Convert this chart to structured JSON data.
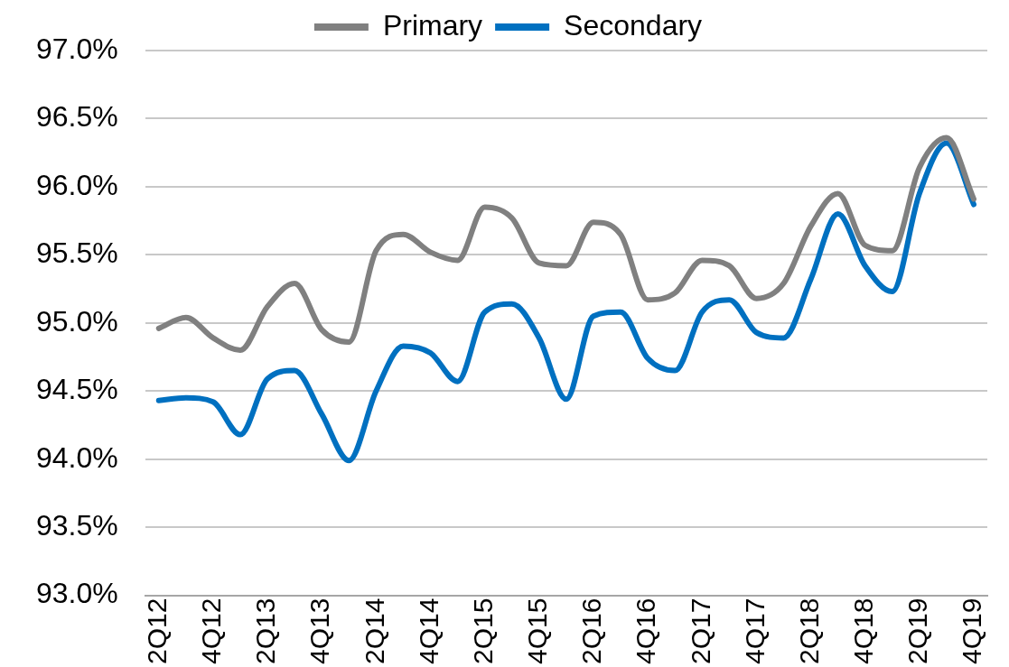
{
  "chart_data": {
    "type": "line",
    "categories": [
      "2Q12",
      null,
      "4Q12",
      null,
      "2Q13",
      null,
      "4Q13",
      null,
      "2Q14",
      null,
      "4Q14",
      null,
      "2Q15",
      null,
      "4Q15",
      null,
      "2Q16",
      null,
      "4Q16",
      null,
      "2Q17",
      null,
      "4Q17",
      null,
      "2Q18",
      null,
      "4Q18",
      null,
      "2Q19",
      null,
      "4Q19"
    ],
    "series": [
      {
        "name": "Primary",
        "color": "#808080",
        "values": [
          94.96,
          95.04,
          94.89,
          94.8,
          95.12,
          95.29,
          94.95,
          94.86,
          95.53,
          95.65,
          95.52,
          95.46,
          95.85,
          95.77,
          95.44,
          95.42,
          95.74,
          95.65,
          95.17,
          95.22,
          95.46,
          95.42,
          95.18,
          95.29,
          95.71,
          95.95,
          95.57,
          95.53,
          96.14,
          96.36,
          95.91
        ]
      },
      {
        "name": "Secondary",
        "color": "#0070c0",
        "values": [
          94.43,
          94.45,
          94.42,
          94.18,
          94.59,
          94.65,
          94.33,
          93.99,
          94.5,
          94.83,
          94.78,
          94.57,
          95.08,
          95.14,
          94.89,
          94.44,
          95.05,
          95.08,
          94.74,
          94.65,
          95.08,
          95.17,
          94.93,
          94.89,
          95.32,
          95.8,
          95.42,
          95.23,
          95.95,
          96.32,
          95.87
        ]
      }
    ],
    "ylim": [
      93,
      97
    ],
    "yticks": [
      {
        "value": 93,
        "label": "93.0%"
      },
      {
        "value": 93.5,
        "label": "93.5%"
      },
      {
        "value": 94,
        "label": "94.0%"
      },
      {
        "value": 94.5,
        "label": "94.5%"
      },
      {
        "value": 95,
        "label": "95.0%"
      },
      {
        "value": 95.5,
        "label": "95.5%"
      },
      {
        "value": 96,
        "label": "96.0%"
      },
      {
        "value": 96.5,
        "label": "96.5%"
      },
      {
        "value": 97,
        "label": "97.0%"
      }
    ],
    "grid": "y",
    "legend": "top",
    "marker": "none",
    "line_style": "solid"
  }
}
